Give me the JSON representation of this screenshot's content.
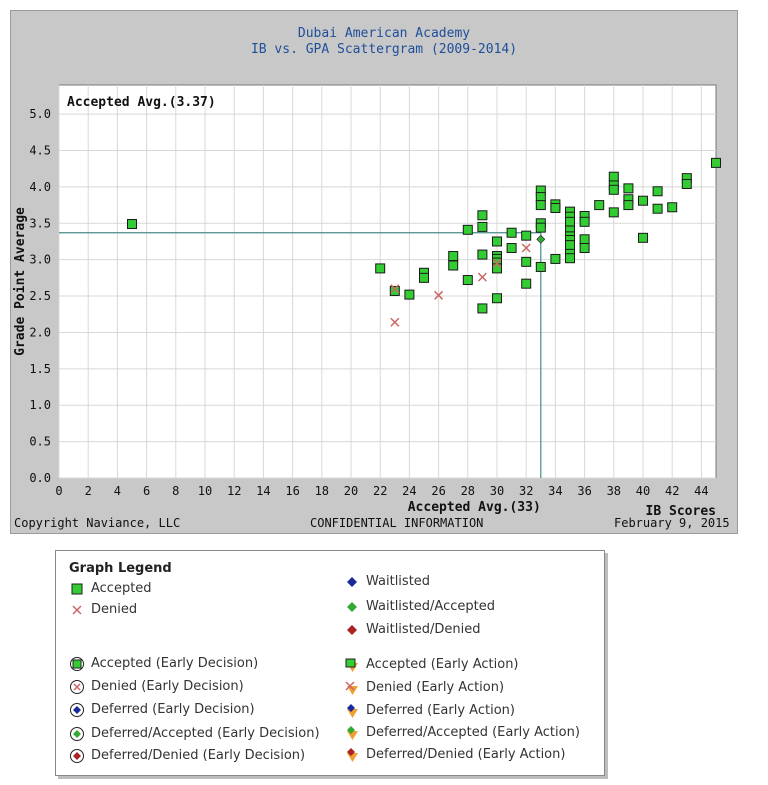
{
  "header": {
    "title_line1": "Dubai American Academy",
    "title_line2": "IB vs. GPA Scattergram (2009-2014)"
  },
  "footer": {
    "copyright": "Copyright Naviance, LLC",
    "confidential": "CONFIDENTIAL INFORMATION",
    "date": "February 9, 2015"
  },
  "colors": {
    "accepted": "#33cc33",
    "denied": "#cc6666",
    "avg_line": "#4a8a8a",
    "grid": "#d8d8d8"
  },
  "chart_data": {
    "type": "scatter",
    "title": "Dubai American Academy IB vs. GPA Scattergram (2009-2014)",
    "xlabel": "IB Scores",
    "ylabel": "Grade Point Average",
    "xlim": [
      0,
      45
    ],
    "ylim": [
      0,
      5.4
    ],
    "x_ticks": [
      0,
      2,
      4,
      6,
      8,
      10,
      12,
      14,
      16,
      18,
      20,
      22,
      24,
      26,
      28,
      30,
      32,
      34,
      36,
      38,
      40,
      42,
      44
    ],
    "y_ticks": [
      0.0,
      0.5,
      1.0,
      1.5,
      2.0,
      2.5,
      3.0,
      3.5,
      4.0,
      4.5,
      5.0
    ],
    "avg_gpa": 3.37,
    "avg_gpa_label": "Accepted Avg.(3.37)",
    "avg_ib": 33,
    "avg_ib_label": "Accepted Avg.(33)",
    "grid": true,
    "series": [
      {
        "name": "Accepted",
        "marker": "square",
        "points": [
          [
            5,
            3.49
          ],
          [
            22,
            2.88
          ],
          [
            23,
            2.57
          ],
          [
            24,
            2.52
          ],
          [
            25,
            2.82
          ],
          [
            25,
            2.75
          ],
          [
            27,
            3.05
          ],
          [
            27,
            2.92
          ],
          [
            28,
            3.41
          ],
          [
            28,
            2.72
          ],
          [
            29,
            3.61
          ],
          [
            29,
            3.45
          ],
          [
            29,
            3.07
          ],
          [
            29,
            2.33
          ],
          [
            30,
            3.25
          ],
          [
            30,
            3.05
          ],
          [
            30,
            3.01
          ],
          [
            30,
            2.96
          ],
          [
            30,
            2.88
          ],
          [
            30,
            2.47
          ],
          [
            31,
            3.37
          ],
          [
            31,
            3.16
          ],
          [
            32,
            3.33
          ],
          [
            32,
            2.97
          ],
          [
            32,
            2.67
          ],
          [
            33,
            3.95
          ],
          [
            33,
            3.86
          ],
          [
            33,
            3.75
          ],
          [
            33,
            3.5
          ],
          [
            33,
            3.44
          ],
          [
            33,
            2.9
          ],
          [
            34,
            3.76
          ],
          [
            34,
            3.71
          ],
          [
            34,
            3.01
          ],
          [
            35,
            3.66
          ],
          [
            35,
            3.59
          ],
          [
            35,
            3.52
          ],
          [
            35,
            3.4
          ],
          [
            35,
            3.32
          ],
          [
            35,
            3.27
          ],
          [
            35,
            3.2
          ],
          [
            35,
            3.08
          ],
          [
            35,
            3.02
          ],
          [
            36,
            3.6
          ],
          [
            36,
            3.52
          ],
          [
            36,
            3.28
          ],
          [
            36,
            3.16
          ],
          [
            37,
            3.75
          ],
          [
            38,
            4.14
          ],
          [
            38,
            4.02
          ],
          [
            38,
            3.96
          ],
          [
            38,
            3.65
          ],
          [
            39,
            3.98
          ],
          [
            39,
            3.83
          ],
          [
            39,
            3.75
          ],
          [
            40,
            3.81
          ],
          [
            40,
            3.3
          ],
          [
            41,
            3.94
          ],
          [
            41,
            3.7
          ],
          [
            42,
            3.72
          ],
          [
            43,
            4.12
          ],
          [
            43,
            4.04
          ],
          [
            45,
            4.33
          ]
        ]
      },
      {
        "name": "Denied",
        "marker": "x",
        "points": [
          [
            23,
            2.14
          ],
          [
            23,
            2.6
          ],
          [
            26,
            2.51
          ],
          [
            29,
            2.76
          ],
          [
            30,
            2.95
          ],
          [
            32,
            3.16
          ]
        ]
      },
      {
        "name": "Waitlisted/Accepted",
        "marker": "diamond",
        "points": [
          [
            33,
            3.28
          ]
        ]
      }
    ]
  },
  "legend": {
    "heading": "Graph Legend",
    "items": [
      {
        "label": "Accepted",
        "symbol": "accepted"
      },
      {
        "label": "Denied",
        "symbol": "denied"
      },
      {
        "label": "Waitlisted",
        "symbol": "waitlisted"
      },
      {
        "label": "Waitlisted/Accepted",
        "symbol": "waitlisted-accepted"
      },
      {
        "label": "Waitlisted/Denied",
        "symbol": "waitlisted-denied"
      },
      {
        "label": "Accepted (Early Decision)",
        "symbol": "ed-accepted"
      },
      {
        "label": "Denied (Early Decision)",
        "symbol": "ed-denied"
      },
      {
        "label": "Deferred (Early Decision)",
        "symbol": "ed-deferred"
      },
      {
        "label": "Deferred/Accepted (Early Decision)",
        "symbol": "ed-deferred-accepted"
      },
      {
        "label": "Deferred/Denied (Early Decision)",
        "symbol": "ed-deferred-denied"
      },
      {
        "label": "Accepted (Early Action)",
        "symbol": "ea-accepted"
      },
      {
        "label": "Denied (Early Action)",
        "symbol": "ea-denied"
      },
      {
        "label": "Deferred (Early Action)",
        "symbol": "ea-deferred"
      },
      {
        "label": "Deferred/Accepted (Early Action)",
        "symbol": "ea-deferred-accepted"
      },
      {
        "label": "Deferred/Denied (Early Action)",
        "symbol": "ea-deferred-denied"
      }
    ]
  }
}
